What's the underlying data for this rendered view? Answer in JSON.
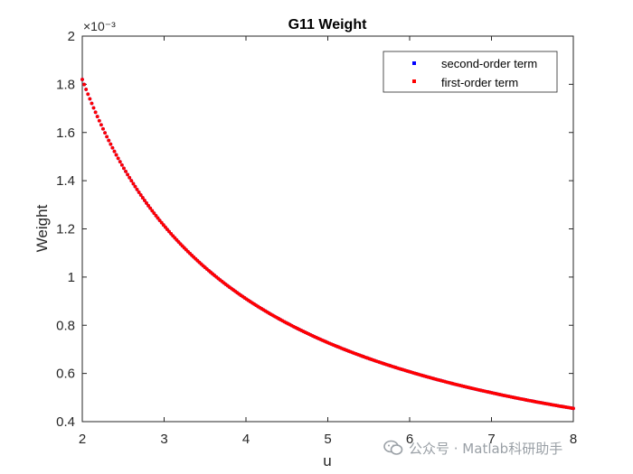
{
  "chart_data": {
    "type": "line",
    "title": "G11 Weight",
    "xlabel": "u",
    "ylabel": "Weight",
    "xlim": [
      2,
      8
    ],
    "ylim": [
      0.0004,
      0.002
    ],
    "x_ticks": [
      "2",
      "3",
      "4",
      "5",
      "6",
      "7",
      "8"
    ],
    "y_ticks": [
      "0.4",
      "0.6",
      "0.8",
      "1",
      "1.2",
      "1.4",
      "1.6",
      "1.8",
      "2"
    ],
    "y_exponent_label": "×10⁻³",
    "legend_position": "top-right",
    "grid": false,
    "x": [
      2,
      2.5,
      3,
      3.5,
      4,
      4.5,
      5,
      5.5,
      6,
      6.5,
      7,
      7.5,
      8
    ],
    "series": [
      {
        "name": "second-order term",
        "color": "#0000ff",
        "values": [
          0.00182,
          0.001456,
          0.001213,
          0.00104,
          0.00091,
          0.000809,
          0.000728,
          0.000662,
          0.000607,
          0.00056,
          0.00052,
          0.000485,
          0.000455
        ]
      },
      {
        "name": "first-order term",
        "color": "#ff0000",
        "values": [
          0.00182,
          0.001456,
          0.001213,
          0.00104,
          0.00091,
          0.000809,
          0.000728,
          0.000662,
          0.000607,
          0.00056,
          0.00052,
          0.000485,
          0.000455
        ]
      }
    ]
  },
  "watermark": {
    "icon": "wechat-icon",
    "text": "公众号 · Matlab科研助手"
  }
}
